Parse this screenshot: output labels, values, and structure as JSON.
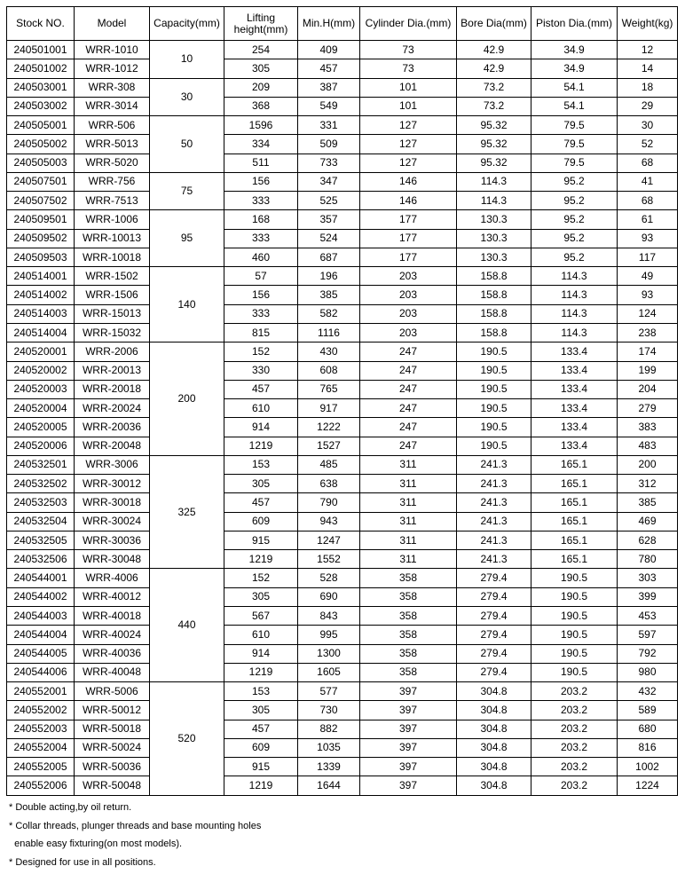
{
  "headers": [
    "Stock NO.",
    "Model",
    "Capacity(mm)",
    "Lifting height(mm)",
    "Min.H(mm)",
    "Cylinder Dia.(mm)",
    "Bore Dia(mm)",
    "Piston Dia.(mm)",
    "Weight(kg)"
  ],
  "groups": [
    {
      "capacity": "10",
      "rows": [
        [
          "240501001",
          "WRR-1010",
          "254",
          "409",
          "73",
          "42.9",
          "34.9",
          "12"
        ],
        [
          "240501002",
          "WRR-1012",
          "305",
          "457",
          "73",
          "42.9",
          "34.9",
          "14"
        ]
      ]
    },
    {
      "capacity": "30",
      "rows": [
        [
          "240503001",
          "WRR-308",
          "209",
          "387",
          "101",
          "73.2",
          "54.1",
          "18"
        ],
        [
          "240503002",
          "WRR-3014",
          "368",
          "549",
          "101",
          "73.2",
          "54.1",
          "29"
        ]
      ]
    },
    {
      "capacity": "50",
      "rows": [
        [
          "240505001",
          "WRR-506",
          "1596",
          "331",
          "127",
          "95.32",
          "79.5",
          "30"
        ],
        [
          "240505002",
          "WRR-5013",
          "334",
          "509",
          "127",
          "95.32",
          "79.5",
          "52"
        ],
        [
          "240505003",
          "WRR-5020",
          "511",
          "733",
          "127",
          "95.32",
          "79.5",
          "68"
        ]
      ]
    },
    {
      "capacity": "75",
      "rows": [
        [
          "240507501",
          "WRR-756",
          "156",
          "347",
          "146",
          "114.3",
          "95.2",
          "41"
        ],
        [
          "240507502",
          "WRR-7513",
          "333",
          "525",
          "146",
          "114.3",
          "95.2",
          "68"
        ]
      ]
    },
    {
      "capacity": "95",
      "rows": [
        [
          "240509501",
          "WRR-1006",
          "168",
          "357",
          "177",
          "130.3",
          "95.2",
          "61"
        ],
        [
          "240509502",
          "WRR-10013",
          "333",
          "524",
          "177",
          "130.3",
          "95.2",
          "93"
        ],
        [
          "240509503",
          "WRR-10018",
          "460",
          "687",
          "177",
          "130.3",
          "95.2",
          "117"
        ]
      ]
    },
    {
      "capacity": "140",
      "rows": [
        [
          "240514001",
          "WRR-1502",
          "57",
          "196",
          "203",
          "158.8",
          "114.3",
          "49"
        ],
        [
          "240514002",
          "WRR-1506",
          "156",
          "385",
          "203",
          "158.8",
          "114.3",
          "93"
        ],
        [
          "240514003",
          "WRR-15013",
          "333",
          "582",
          "203",
          "158.8",
          "114.3",
          "124"
        ],
        [
          "240514004",
          "WRR-15032",
          "815",
          "1116",
          "203",
          "158.8",
          "114.3",
          "238"
        ]
      ]
    },
    {
      "capacity": "200",
      "rows": [
        [
          "240520001",
          "WRR-2006",
          "152",
          "430",
          "247",
          "190.5",
          "133.4",
          "174"
        ],
        [
          "240520002",
          "WRR-20013",
          "330",
          "608",
          "247",
          "190.5",
          "133.4",
          "199"
        ],
        [
          "240520003",
          "WRR-20018",
          "457",
          "765",
          "247",
          "190.5",
          "133.4",
          "204"
        ],
        [
          "240520004",
          "WRR-20024",
          "610",
          "917",
          "247",
          "190.5",
          "133.4",
          "279"
        ],
        [
          "240520005",
          "WRR-20036",
          "914",
          "1222",
          "247",
          "190.5",
          "133.4",
          "383"
        ],
        [
          "240520006",
          "WRR-20048",
          "1219",
          "1527",
          "247",
          "190.5",
          "133.4",
          "483"
        ]
      ]
    },
    {
      "capacity": "325",
      "rows": [
        [
          "240532501",
          "WRR-3006",
          "153",
          "485",
          "311",
          "241.3",
          "165.1",
          "200"
        ],
        [
          "240532502",
          "WRR-30012",
          "305",
          "638",
          "311",
          "241.3",
          "165.1",
          "312"
        ],
        [
          "240532503",
          "WRR-30018",
          "457",
          "790",
          "311",
          "241.3",
          "165.1",
          "385"
        ],
        [
          "240532504",
          "WRR-30024",
          "609",
          "943",
          "311",
          "241.3",
          "165.1",
          "469"
        ],
        [
          "240532505",
          "WRR-30036",
          "915",
          "1247",
          "311",
          "241.3",
          "165.1",
          "628"
        ],
        [
          "240532506",
          "WRR-30048",
          "1219",
          "1552",
          "311",
          "241.3",
          "165.1",
          "780"
        ]
      ]
    },
    {
      "capacity": "440",
      "rows": [
        [
          "240544001",
          "WRR-4006",
          "152",
          "528",
          "358",
          "279.4",
          "190.5",
          "303"
        ],
        [
          "240544002",
          "WRR-40012",
          "305",
          "690",
          "358",
          "279.4",
          "190.5",
          "399"
        ],
        [
          "240544003",
          "WRR-40018",
          "567",
          "843",
          "358",
          "279.4",
          "190.5",
          "453"
        ],
        [
          "240544004",
          "WRR-40024",
          "610",
          "995",
          "358",
          "279.4",
          "190.5",
          "597"
        ],
        [
          "240544005",
          "WRR-40036",
          "914",
          "1300",
          "358",
          "279.4",
          "190.5",
          "792"
        ],
        [
          "240544006",
          "WRR-40048",
          "1219",
          "1605",
          "358",
          "279.4",
          "190.5",
          "980"
        ]
      ]
    },
    {
      "capacity": "520",
      "rows": [
        [
          "240552001",
          "WRR-5006",
          "153",
          "577",
          "397",
          "304.8",
          "203.2",
          "432"
        ],
        [
          "240552002",
          "WRR-50012",
          "305",
          "730",
          "397",
          "304.8",
          "203.2",
          "589"
        ],
        [
          "240552003",
          "WRR-50018",
          "457",
          "882",
          "397",
          "304.8",
          "203.2",
          "680"
        ],
        [
          "240552004",
          "WRR-50024",
          "609",
          "1035",
          "397",
          "304.8",
          "203.2",
          "816"
        ],
        [
          "240552005",
          "WRR-50036",
          "915",
          "1339",
          "397",
          "304.8",
          "203.2",
          "1002"
        ],
        [
          "240552006",
          "WRR-50048",
          "1219",
          "1644",
          "397",
          "304.8",
          "203.2",
          "1224"
        ]
      ]
    }
  ],
  "notes": [
    "* Double acting,by oil return.",
    "* Collar threads, plunger threads and base mounting holes",
    "  enable easy fixturing(on most models).",
    "* Designed for use in all positions."
  ]
}
